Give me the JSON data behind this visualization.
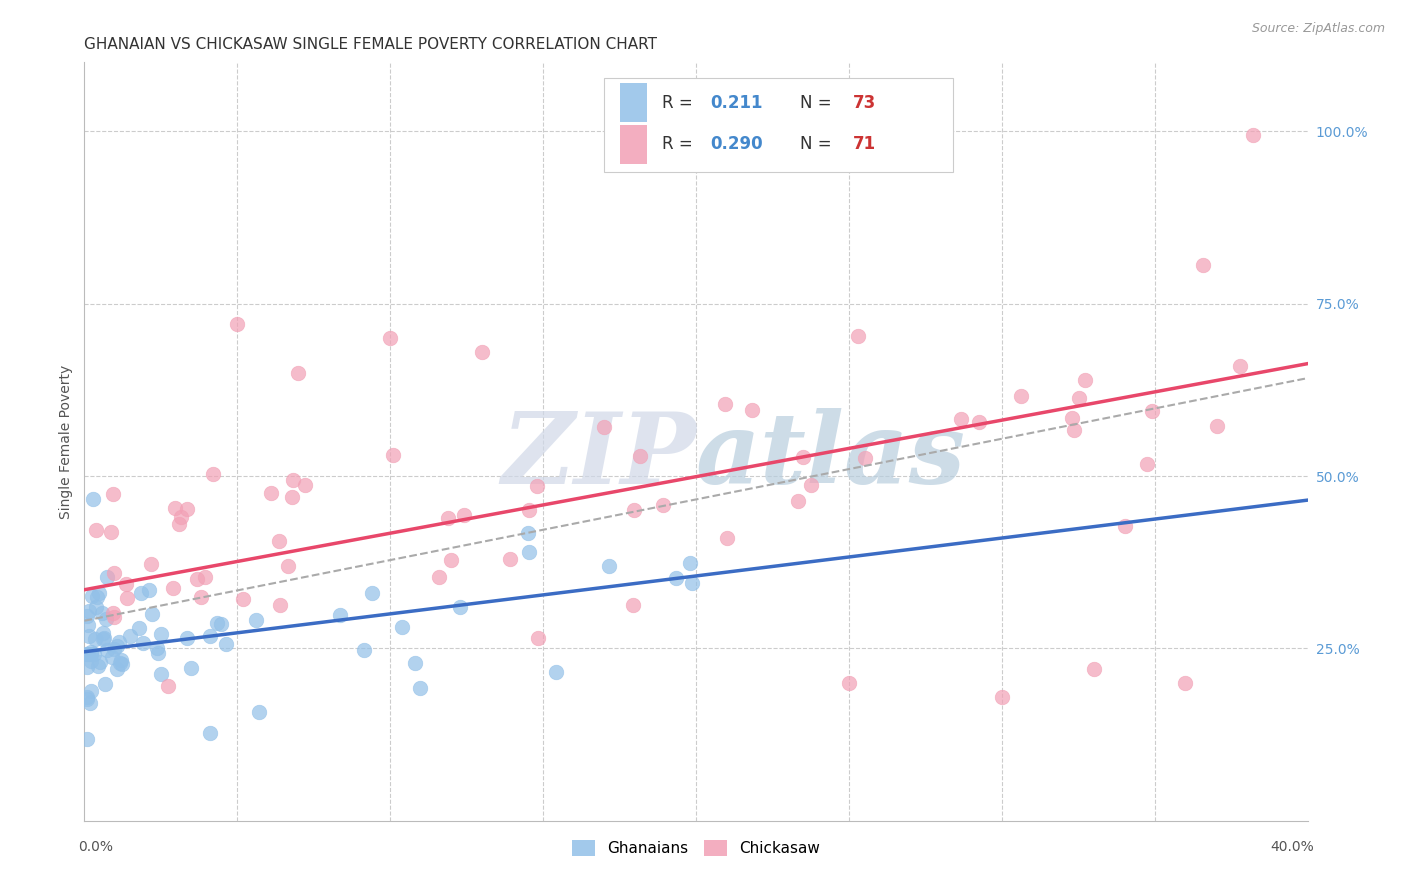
{
  "title": "GHANAIAN VS CHICKASAW SINGLE FEMALE POVERTY CORRELATION CHART",
  "source": "Source: ZipAtlas.com",
  "ylabel": "Single Female Poverty",
  "xlim": [
    0.0,
    0.4
  ],
  "ylim": [
    0.0,
    1.1
  ],
  "ghanaian_color": "#92C0E8",
  "chickasaw_color": "#F2A0B5",
  "ghanaian_line_color": "#3B6CC4",
  "chickasaw_line_color": "#E8476A",
  "dashed_line_color": "#AAAAAA",
  "R_ghanaian": 0.211,
  "N_ghanaian": 73,
  "R_chickasaw": 0.29,
  "N_chickasaw": 71,
  "watermark_zip": "ZIP",
  "watermark_atlas": "atlas",
  "background_color": "#FFFFFF",
  "grid_color": "#CCCCCC",
  "title_fontsize": 11,
  "axis_label_fontsize": 10,
  "tick_fontsize": 10,
  "right_tick_color": "#5B9BD5",
  "legend_text_color": "#333333",
  "legend_r_color": "#4488CC",
  "legend_n_color": "#CC3333",
  "ghanaian_intercept": 0.245,
  "ghanaian_slope": 0.55,
  "chickasaw_intercept": 0.335,
  "chickasaw_slope": 0.82,
  "dashed_intercept": 0.29,
  "dashed_slope": 0.88
}
